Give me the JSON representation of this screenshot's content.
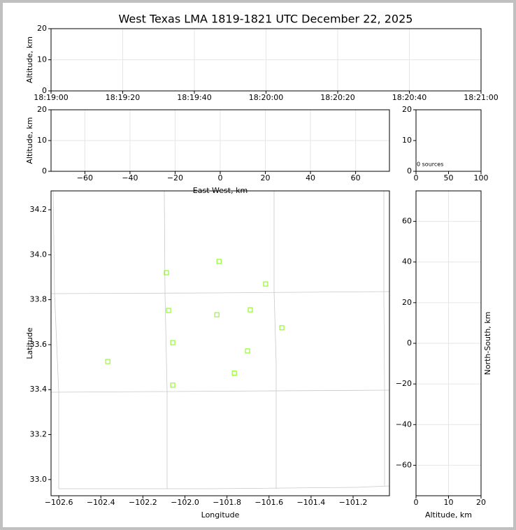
{
  "chart_data": [
    {
      "type": "scatter",
      "title": "West Texas LMA 1819-1821 UTC December 22, 2025",
      "ylabel": "Altitude, km",
      "xlim": [
        "18:19:00",
        "18:21:00"
      ],
      "xticks": [
        "18:19:00",
        "18:19:20",
        "18:19:40",
        "18:20:00",
        "18:20:20",
        "18:20:40",
        "18:21:00"
      ],
      "ylim": [
        0,
        20
      ],
      "yticks": [
        0,
        10,
        20
      ],
      "grid": true
    },
    {
      "type": "scatter",
      "xlabel": "East-West, km",
      "ylabel": "Altitude, km",
      "xlim": [
        -75,
        75
      ],
      "xticks": [
        {
          "value": -60,
          "label": "−60"
        },
        {
          "value": -40,
          "label": "−40"
        },
        {
          "value": -20,
          "label": "−20"
        },
        0,
        20,
        40,
        60
      ],
      "ylim": [
        0,
        20
      ],
      "yticks": [
        0,
        10,
        20
      ],
      "grid": true
    },
    {
      "type": "histogram",
      "annotation": "0 sources",
      "xlim": [
        0,
        100
      ],
      "xticks": [
        0,
        50,
        100
      ],
      "ylim": [
        0,
        20
      ],
      "yticks": [
        0,
        10,
        20
      ],
      "grid": false
    },
    {
      "type": "scatter",
      "xlabel": "Longitude",
      "ylabel": "Latitude",
      "xlim": [
        -102.637,
        -101.027
      ],
      "xticks": [
        {
          "value": -102.6,
          "label": "−102.6"
        },
        {
          "value": -102.4,
          "label": "−102.4"
        },
        {
          "value": -102.2,
          "label": "−102.2"
        },
        {
          "value": -102.0,
          "label": "−102.0"
        },
        {
          "value": -101.8,
          "label": "−101.8"
        },
        {
          "value": -101.6,
          "label": "−101.6"
        },
        {
          "value": -101.4,
          "label": "−101.4"
        },
        {
          "value": -101.2,
          "label": "−101.2"
        }
      ],
      "ylim": [
        32.928,
        34.284
      ],
      "yticks": [
        {
          "value": 33,
          "label": "33.0"
        },
        33.2,
        33.4,
        33.6,
        33.8,
        {
          "value": 34,
          "label": "34.0"
        },
        34.2
      ],
      "grid": false,
      "series": [
        {
          "color": "#7cfc00",
          "x": [
            -101.838,
            -102.088,
            -101.616,
            -102.078,
            -101.689,
            -101.848,
            -101.539,
            -102.058,
            -101.702,
            -102.367,
            -101.765,
            -102.058
          ],
          "values": [
            33.97,
            33.92,
            33.87,
            33.752,
            33.755,
            33.733,
            33.675,
            33.609,
            33.572,
            33.525,
            33.473,
            33.42
          ]
        }
      ]
    },
    {
      "type": "scatter",
      "xlabel": "Altitude, km",
      "ylabel": "North-South, km",
      "ylabel_position": "right",
      "xlim": [
        0,
        20
      ],
      "xticks": [
        0,
        10,
        20
      ],
      "ylim": [
        -75,
        75
      ],
      "yticks": [
        {
          "value": -60,
          "label": "−60"
        },
        {
          "value": -40,
          "label": "−40"
        },
        {
          "value": -20,
          "label": "−20"
        },
        0,
        20,
        40,
        60
      ],
      "grid": true
    }
  ]
}
